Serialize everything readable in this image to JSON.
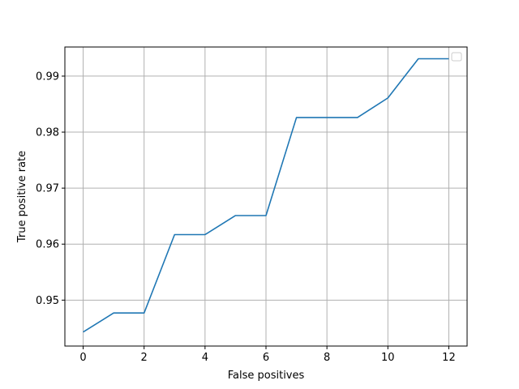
{
  "chart_data": {
    "type": "line",
    "title": "",
    "xlabel": "False positives",
    "ylabel": "True positive rate",
    "xlim": [
      -0.6,
      12.6
    ],
    "ylim": [
      0.9418,
      0.9952
    ],
    "x_ticks": [
      0,
      2,
      4,
      6,
      8,
      10,
      12
    ],
    "y_ticks": [
      0.95,
      0.96,
      0.97,
      0.98,
      0.99
    ],
    "grid": true,
    "legend": {
      "placement": "top-right",
      "entries": []
    },
    "colors": {
      "line": "#1f77b4",
      "grid": "#b0b0b0",
      "axes": "#000000"
    },
    "series": [
      {
        "x": [
          0,
          1,
          2,
          3,
          4,
          5,
          6,
          7,
          8,
          9,
          10,
          11,
          12
        ],
        "y": [
          0.9443,
          0.9477,
          0.9477,
          0.9617,
          0.9617,
          0.9651,
          0.9651,
          0.9826,
          0.9826,
          0.9826,
          0.9861,
          0.9931,
          0.9931
        ]
      }
    ]
  }
}
